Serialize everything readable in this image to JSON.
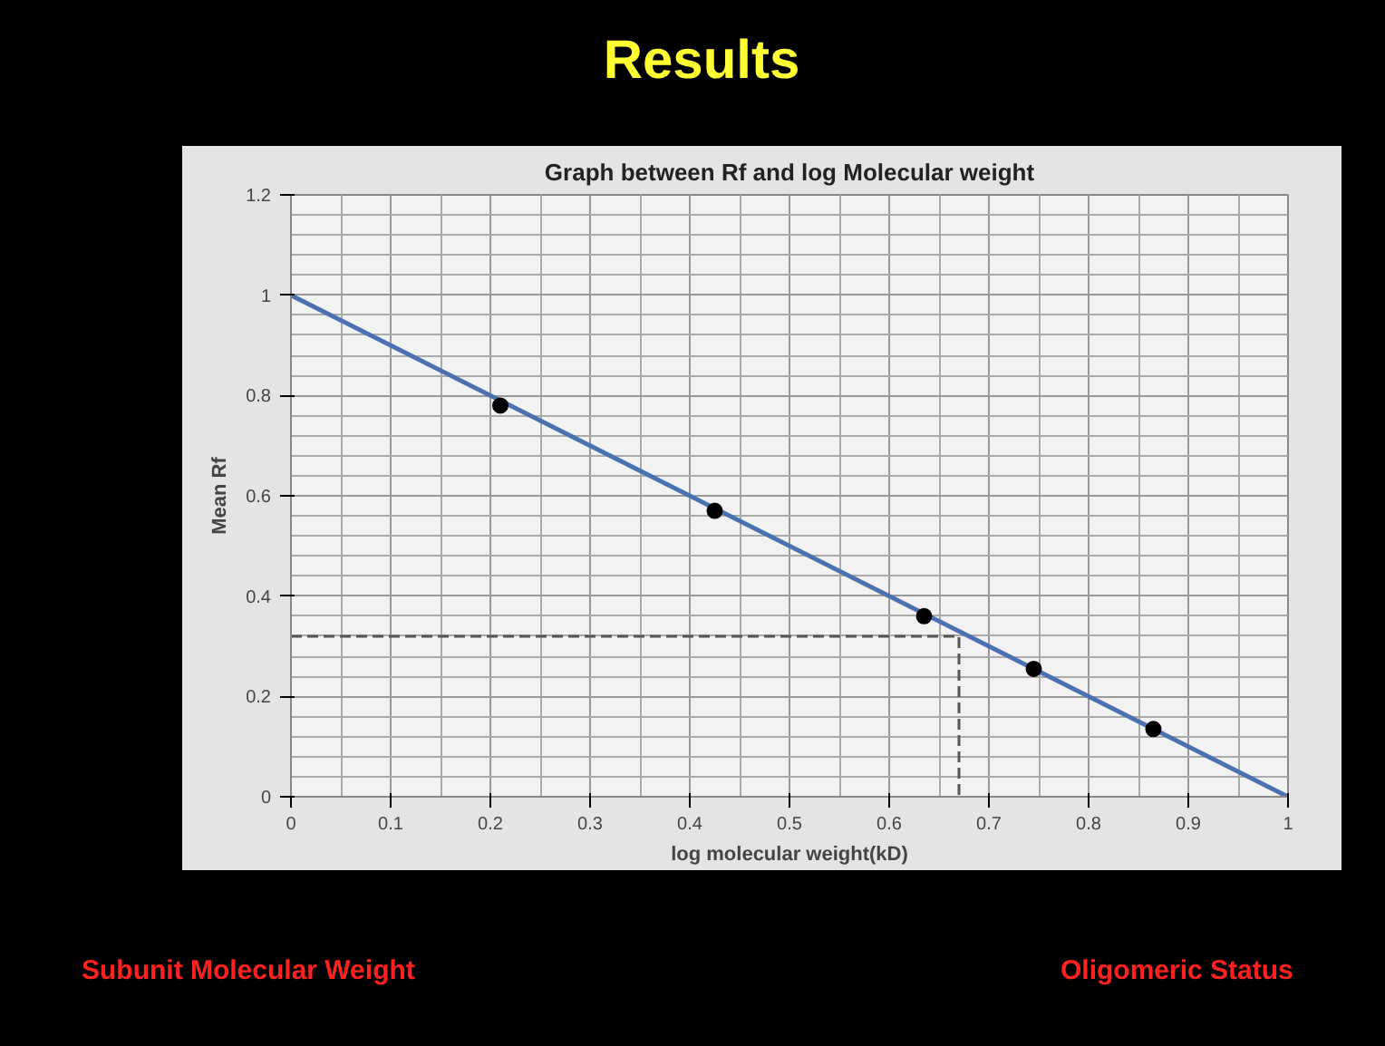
{
  "chart_data": {
    "type": "scatter",
    "title": "Graph between Rf and log Molecular weight",
    "xlabel": "log molecular weight(kD)",
    "ylabel": "Mean Rf",
    "annotations": [
      "Results",
      "Subunit Molecular Weight",
      "Oligomeric Status"
    ],
    "xlim": [
      0,
      1
    ],
    "ylim": [
      0,
      1.2
    ],
    "xticks": [
      0,
      0.1,
      0.2,
      0.3,
      0.4,
      0.5,
      0.6,
      0.7,
      0.8,
      0.9,
      1
    ],
    "yticks": [
      0,
      0.2,
      0.4,
      0.6,
      0.8,
      1,
      1.2
    ],
    "grid": true,
    "series": [
      {
        "type": "line",
        "color": "#4a72b0",
        "x": [
          0,
          1
        ],
        "values": [
          1,
          0
        ],
        "marker": "none",
        "line_style": "solid"
      },
      {
        "type": "line",
        "color": "#555555",
        "x": [
          0,
          0.67,
          0.67
        ],
        "values": [
          0.32,
          0.32,
          0
        ],
        "marker": "none",
        "line_style": "dashed"
      },
      {
        "color": "#000000",
        "x": [
          0.21,
          0.425,
          0.635,
          0.745,
          0.865
        ],
        "values": [
          0.78,
          0.57,
          0.36,
          0.255,
          0.135
        ],
        "marker": "circle"
      }
    ]
  }
}
